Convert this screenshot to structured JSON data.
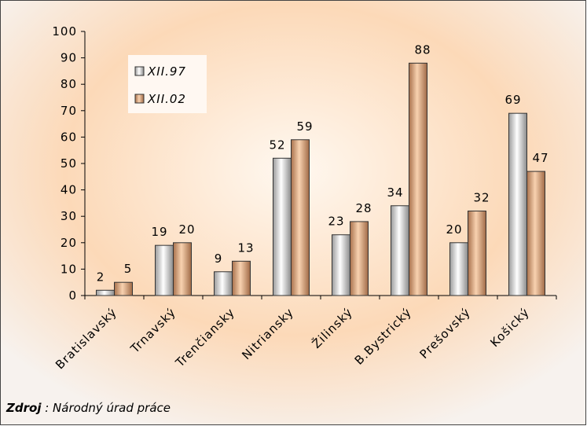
{
  "chart_data": {
    "type": "bar",
    "categories": [
      "Bratislavský",
      "Trnavský",
      "Trenčiansky",
      "Nitriansky",
      "Žilinský",
      "B.Bystrický",
      "Prešovský",
      "Košický"
    ],
    "series": [
      {
        "name": "XII.97",
        "color": "#e6e6e6",
        "values": [
          2,
          19,
          9,
          52,
          23,
          34,
          20,
          69
        ]
      },
      {
        "name": "XII.02",
        "color": "#e8b48a",
        "values": [
          5,
          20,
          13,
          59,
          28,
          88,
          32,
          47
        ]
      }
    ],
    "ylim": [
      0,
      100
    ],
    "yticks": [
      0,
      10,
      20,
      30,
      40,
      50,
      60,
      70,
      80,
      90,
      100
    ],
    "grid": false,
    "source": {
      "label": "Zdroj",
      "text": " : Národný úrad práce"
    }
  }
}
